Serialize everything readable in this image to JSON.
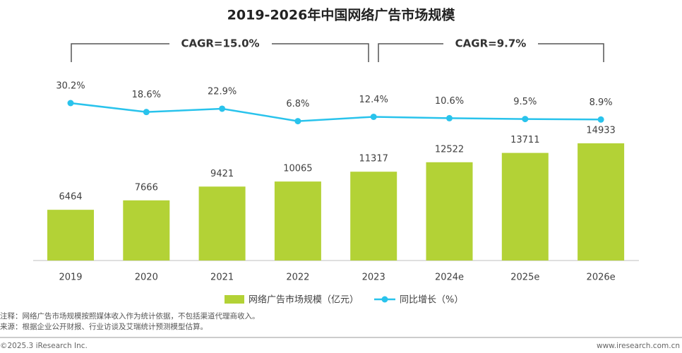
{
  "chart_data": {
    "type": "bar",
    "title": "2019-2026年中国网络广告市场规模",
    "categories": [
      "2019",
      "2020",
      "2021",
      "2022",
      "2023",
      "2024e",
      "2025e",
      "2026e"
    ],
    "series": [
      {
        "name": "网络广告市场规模（亿元）",
        "type": "bar",
        "color": "#b3d236",
        "values": [
          6464,
          7666,
          9421,
          10065,
          11317,
          12522,
          13711,
          14933
        ]
      },
      {
        "name": "同比增长（%）",
        "type": "line",
        "color": "#29c3ec",
        "values": [
          30.2,
          18.6,
          22.9,
          6.8,
          12.4,
          10.6,
          9.5,
          8.9
        ],
        "value_labels": [
          "30.2%",
          "18.6%",
          "22.9%",
          "6.8%",
          "12.4%",
          "10.6%",
          "9.5%",
          "8.9%"
        ]
      }
    ],
    "annotations": [
      "CAGR=15.0%",
      "CAGR=9.7%"
    ]
  },
  "notes": [
    "注释：网络广告市场规模按照媒体收入作为统计依据，不包括渠道代理商收入。",
    "来源：根据企业公开财报、行业访谈及艾瑞统计预测模型估算。"
  ],
  "footer": {
    "left": "©2025.3 iResearch Inc.",
    "right": "www.iresearch.com.cn"
  }
}
